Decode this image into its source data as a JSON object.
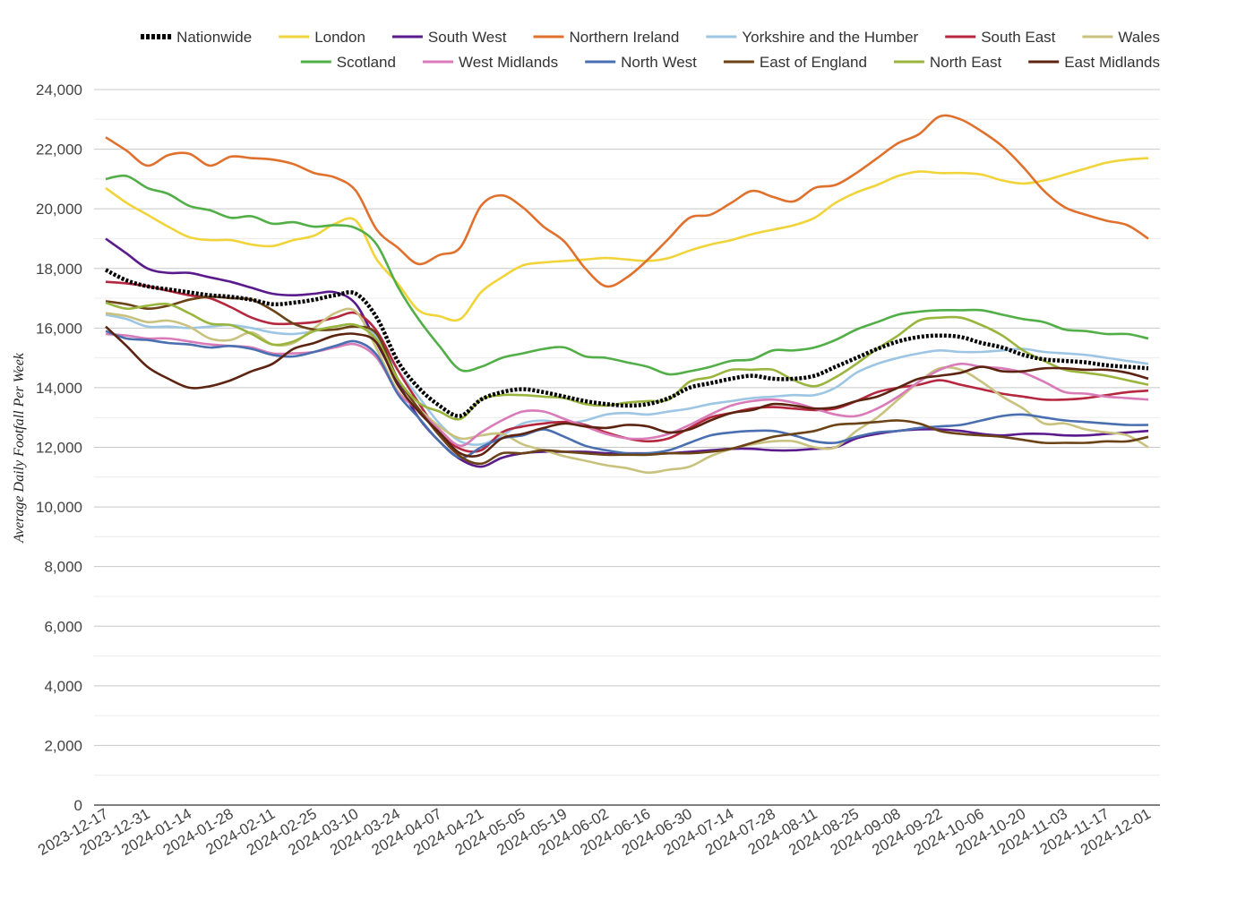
{
  "chart_data": {
    "type": "line",
    "ylabel": "Average Daily Footfall Per Week",
    "ylim": [
      0,
      24000
    ],
    "yticks": [
      0,
      2000,
      4000,
      6000,
      8000,
      10000,
      12000,
      14000,
      16000,
      18000,
      20000,
      22000,
      24000
    ],
    "ytick_labels": [
      "0",
      "2,000",
      "4,000",
      "6,000",
      "8,000",
      "10,000",
      "12,000",
      "14,000",
      "16,000",
      "18,000",
      "20,000",
      "22,000",
      "24,000"
    ],
    "grid": true,
    "legend_position": "top",
    "x": [
      "2023-12-17",
      "2023-12-24",
      "2023-12-31",
      "2024-01-07",
      "2024-01-14",
      "2024-01-21",
      "2024-01-28",
      "2024-02-04",
      "2024-02-11",
      "2024-02-18",
      "2024-02-25",
      "2024-03-03",
      "2024-03-10",
      "2024-03-17",
      "2024-03-24",
      "2024-03-31",
      "2024-04-07",
      "2024-04-14",
      "2024-04-21",
      "2024-04-28",
      "2024-05-05",
      "2024-05-12",
      "2024-05-19",
      "2024-05-26",
      "2024-06-02",
      "2024-06-09",
      "2024-06-16",
      "2024-06-23",
      "2024-06-30",
      "2024-07-07",
      "2024-07-14",
      "2024-07-21",
      "2024-07-28",
      "2024-08-04",
      "2024-08-11",
      "2024-08-18",
      "2024-08-25",
      "2024-09-01",
      "2024-09-08",
      "2024-09-15",
      "2024-09-22",
      "2024-09-29",
      "2024-10-06",
      "2024-10-13",
      "2024-10-20",
      "2024-10-27",
      "2024-11-03",
      "2024-11-10",
      "2024-11-17",
      "2024-11-24",
      "2024-12-01"
    ],
    "xtick_labels": [
      "2023-12-17",
      "2023-12-31",
      "2024-01-14",
      "2024-01-28",
      "2024-02-11",
      "2024-02-25",
      "2024-03-10",
      "2024-03-24",
      "2024-04-07",
      "2024-04-21",
      "2024-05-05",
      "2024-05-19",
      "2024-06-02",
      "2024-06-16",
      "2024-06-30",
      "2024-07-14",
      "2024-07-28",
      "2024-08-11",
      "2024-08-25",
      "2024-09-08",
      "2024-09-22",
      "2024-10-06",
      "2024-10-20",
      "2024-11-03",
      "2024-11-17",
      "2024-12-01"
    ],
    "series": [
      {
        "name": "Nationwide",
        "color": "#000000",
        "dashed": true,
        "values": [
          17950,
          17600,
          17400,
          17300,
          17200,
          17100,
          17050,
          16950,
          16800,
          16850,
          16950,
          17100,
          17150,
          16350,
          14900,
          14000,
          13400,
          13050,
          13600,
          13850,
          13950,
          13850,
          13700,
          13550,
          13450,
          13400,
          13450,
          13650,
          14000,
          14150,
          14300,
          14400,
          14300,
          14300,
          14400,
          14700,
          15000,
          15300,
          15550,
          15700,
          15750,
          15700,
          15500,
          15350,
          15100,
          14950,
          14900,
          14850,
          14750,
          14700,
          14650
        ]
      },
      {
        "name": "London",
        "color": "#f0d43a",
        "values": [
          20700,
          20200,
          19800,
          19400,
          19050,
          18950,
          18950,
          18800,
          18750,
          18950,
          19100,
          19500,
          19600,
          18300,
          17500,
          16600,
          16400,
          16300,
          17200,
          17700,
          18100,
          18200,
          18250,
          18300,
          18350,
          18300,
          18250,
          18350,
          18600,
          18800,
          18950,
          19150,
          19300,
          19450,
          19700,
          20200,
          20550,
          20800,
          21100,
          21250,
          21200,
          21200,
          21150,
          20950,
          20850,
          20950,
          21150,
          21350,
          21550,
          21650,
          21700
        ]
      },
      {
        "name": "South West",
        "color": "#5a1a8c",
        "values": [
          19000,
          18500,
          18000,
          17850,
          17850,
          17700,
          17550,
          17350,
          17150,
          17100,
          17150,
          17200,
          16800,
          15500,
          14200,
          13000,
          12200,
          11600,
          11350,
          11650,
          11800,
          11850,
          11850,
          11850,
          11800,
          11800,
          11800,
          11800,
          11850,
          11900,
          11950,
          11950,
          11900,
          11900,
          11950,
          12000,
          12300,
          12450,
          12550,
          12600,
          12600,
          12550,
          12450,
          12400,
          12450,
          12450,
          12400,
          12400,
          12450,
          12500,
          12550
        ]
      },
      {
        "name": "Northern Ireland",
        "color": "#e0712d",
        "values": [
          22400,
          21950,
          21450,
          21800,
          21850,
          21450,
          21750,
          21700,
          21650,
          21500,
          21200,
          21050,
          20600,
          19300,
          18700,
          18150,
          18450,
          18700,
          20100,
          20450,
          20050,
          19400,
          18900,
          18000,
          17400,
          17700,
          18300,
          19000,
          19700,
          19800,
          20200,
          20600,
          20400,
          20250,
          20700,
          20800,
          21200,
          21700,
          22200,
          22500,
          23100,
          23000,
          22600,
          22100,
          21400,
          20600,
          20050,
          19800,
          19600,
          19450,
          19000
        ]
      },
      {
        "name": "Yorkshire and the Humber",
        "color": "#9cc6e4",
        "values": [
          16450,
          16300,
          16050,
          16050,
          16000,
          16050,
          16100,
          16000,
          15850,
          15800,
          15900,
          16050,
          16100,
          15700,
          14600,
          13700,
          12800,
          12200,
          12100,
          12400,
          12800,
          12900,
          12800,
          12900,
          13100,
          13150,
          13100,
          13200,
          13300,
          13450,
          13550,
          13650,
          13700,
          13750,
          13750,
          14000,
          14500,
          14800,
          15000,
          15150,
          15250,
          15200,
          15200,
          15250,
          15300,
          15200,
          15150,
          15100,
          15000,
          14900,
          14800
        ]
      },
      {
        "name": "South East",
        "color": "#b5273f",
        "values": [
          17550,
          17500,
          17400,
          17250,
          17100,
          17000,
          16700,
          16350,
          16150,
          16150,
          16200,
          16350,
          16500,
          15900,
          14600,
          13500,
          12500,
          11950,
          11900,
          12500,
          12700,
          12800,
          12850,
          12750,
          12500,
          12300,
          12200,
          12300,
          12650,
          13000,
          13150,
          13300,
          13350,
          13300,
          13250,
          13300,
          13550,
          13850,
          14000,
          14100,
          14250,
          14100,
          13950,
          13800,
          13700,
          13600,
          13600,
          13650,
          13750,
          13850,
          13900
        ]
      },
      {
        "name": "Wales",
        "color": "#c9c27e",
        "values": [
          16500,
          16400,
          16200,
          16250,
          16050,
          15650,
          15600,
          15850,
          15450,
          15500,
          16000,
          16500,
          16550,
          15300,
          13900,
          13300,
          12700,
          12300,
          12400,
          12450,
          12100,
          11900,
          11700,
          11550,
          11400,
          11300,
          11150,
          11250,
          11350,
          11700,
          11950,
          12100,
          12200,
          12200,
          12000,
          12000,
          12550,
          13000,
          13600,
          14200,
          14650,
          14600,
          14200,
          13700,
          13300,
          12800,
          12800,
          12600,
          12500,
          12400,
          12000
        ]
      },
      {
        "name": "Scotland",
        "color": "#52ae47",
        "values": [
          21000,
          21100,
          20700,
          20500,
          20100,
          19950,
          19700,
          19750,
          19500,
          19550,
          19400,
          19450,
          19350,
          18800,
          17400,
          16300,
          15400,
          14600,
          14700,
          15000,
          15150,
          15300,
          15350,
          15050,
          15000,
          14850,
          14700,
          14450,
          14550,
          14700,
          14900,
          14950,
          15250,
          15250,
          15350,
          15600,
          15950,
          16200,
          16450,
          16550,
          16600,
          16600,
          16600,
          16450,
          16300,
          16200,
          15950,
          15900,
          15800,
          15800,
          15650
        ]
      },
      {
        "name": "West Midlands",
        "color": "#d87bb8",
        "values": [
          15800,
          15750,
          15650,
          15650,
          15550,
          15450,
          15400,
          15350,
          15150,
          15150,
          15200,
          15350,
          15450,
          15000,
          13850,
          13250,
          12600,
          12050,
          12500,
          12900,
          13200,
          13200,
          12950,
          12700,
          12450,
          12300,
          12300,
          12450,
          12750,
          13100,
          13400,
          13550,
          13600,
          13500,
          13300,
          13100,
          13050,
          13300,
          13700,
          14200,
          14600,
          14800,
          14700,
          14650,
          14500,
          14200,
          13850,
          13800,
          13700,
          13650,
          13600
        ]
      },
      {
        "name": "North West",
        "color": "#4a6fb0",
        "values": [
          15900,
          15650,
          15600,
          15500,
          15450,
          15350,
          15400,
          15300,
          15100,
          15050,
          15200,
          15400,
          15550,
          15100,
          13800,
          13000,
          12200,
          11650,
          12000,
          12300,
          12400,
          12600,
          12350,
          12050,
          11900,
          11800,
          11800,
          11900,
          12150,
          12400,
          12500,
          12550,
          12550,
          12400,
          12200,
          12150,
          12350,
          12500,
          12550,
          12650,
          12700,
          12750,
          12900,
          13050,
          13100,
          13000,
          12900,
          12850,
          12800,
          12750,
          12750
        ]
      },
      {
        "name": "East of England",
        "color": "#6b4316",
        "values": [
          16900,
          16800,
          16650,
          16750,
          16950,
          17050,
          17000,
          16950,
          16600,
          16150,
          15950,
          15950,
          16050,
          15800,
          14300,
          13300,
          12400,
          11700,
          11450,
          11800,
          11800,
          11900,
          11850,
          11800,
          11750,
          11750,
          11750,
          11800,
          11800,
          11850,
          11950,
          12150,
          12350,
          12450,
          12550,
          12750,
          12800,
          12850,
          12900,
          12800,
          12550,
          12450,
          12400,
          12350,
          12250,
          12150,
          12150,
          12150,
          12200,
          12200,
          12350
        ]
      },
      {
        "name": "North East",
        "color": "#9ab53d",
        "values": [
          16850,
          16650,
          16750,
          16800,
          16500,
          16150,
          16100,
          15800,
          15450,
          15550,
          15900,
          16050,
          16100,
          15600,
          14300,
          13500,
          13200,
          12950,
          13600,
          13750,
          13750,
          13700,
          13650,
          13450,
          13400,
          13500,
          13550,
          13600,
          14200,
          14350,
          14600,
          14600,
          14600,
          14250,
          14050,
          14350,
          14800,
          15300,
          15750,
          16250,
          16350,
          16350,
          16100,
          15750,
          15250,
          14900,
          14600,
          14500,
          14400,
          14250,
          14100
        ]
      },
      {
        "name": "East Midlands",
        "color": "#5c2410",
        "values": [
          16050,
          15400,
          14700,
          14300,
          14000,
          14050,
          14250,
          14550,
          14800,
          15300,
          15500,
          15750,
          15800,
          15500,
          14100,
          13200,
          12500,
          11800,
          11750,
          12300,
          12450,
          12650,
          12800,
          12700,
          12650,
          12750,
          12700,
          12500,
          12600,
          12900,
          13150,
          13250,
          13450,
          13400,
          13300,
          13350,
          13550,
          13700,
          14000,
          14300,
          14400,
          14500,
          14700,
          14550,
          14550,
          14650,
          14650,
          14600,
          14600,
          14500,
          14300
        ]
      }
    ]
  }
}
